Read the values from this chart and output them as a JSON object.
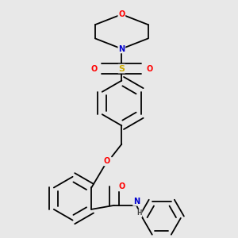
{
  "bg_color": "#e8e8e8",
  "bond_color": "#000000",
  "atom_colors": {
    "O": "#ff0000",
    "N": "#0000cd",
    "S": "#ccaa00",
    "H": "#444444"
  },
  "lw": 1.3
}
